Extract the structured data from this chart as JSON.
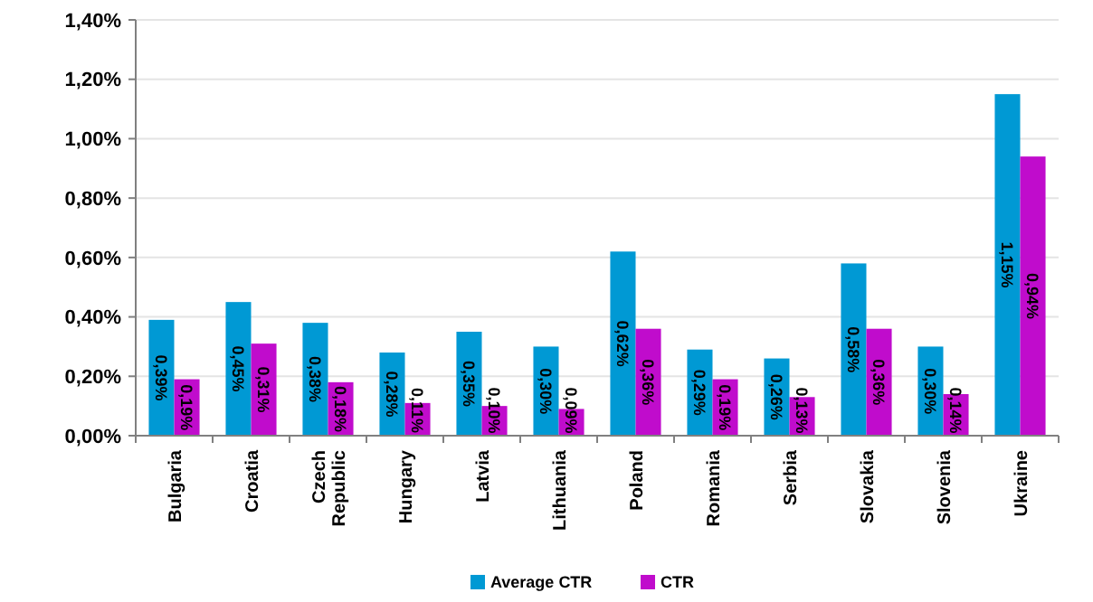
{
  "chart_data": {
    "type": "bar",
    "categories": [
      "Bulgaria",
      "Croatia",
      "Czech Republic",
      "Hungary",
      "Latvia",
      "Lithuania",
      "Poland",
      "Romania",
      "Serbia",
      "Slovakia",
      "Slovenia",
      "Ukraine"
    ],
    "series": [
      {
        "name": "Average CTR",
        "color": "#0099d4",
        "values": [
          0.39,
          0.45,
          0.38,
          0.28,
          0.35,
          0.3,
          0.62,
          0.29,
          0.26,
          0.58,
          0.3,
          1.15
        ],
        "value_labels": [
          "0,39%",
          "0,45%",
          "0,38%",
          "0,28%",
          "0,35%",
          "0,30%",
          "0,62%",
          "0,29%",
          "0,26%",
          "0,58%",
          "0,30%",
          "1,15%"
        ]
      },
      {
        "name": "CTR",
        "color": "#c00ccc",
        "values": [
          0.19,
          0.31,
          0.18,
          0.11,
          0.1,
          0.09,
          0.36,
          0.19,
          0.13,
          0.36,
          0.14,
          0.94
        ],
        "value_labels": [
          "0,19%",
          "0,31%",
          "0,18%",
          "0,11%",
          "0,10%",
          "0,09%",
          "0,36%",
          "0,19%",
          "0,13%",
          "0,36%",
          "0,14%",
          "0,94%"
        ]
      }
    ],
    "ylim": [
      0,
      1.4
    ],
    "yticks": [
      {
        "value": 0,
        "label": "0,00%"
      },
      {
        "value": 0.2,
        "label": "0,20%"
      },
      {
        "value": 0.4,
        "label": "0,40%"
      },
      {
        "value": 0.6,
        "label": "0,60%"
      },
      {
        "value": 0.8,
        "label": "0,80%"
      },
      {
        "value": 1.0,
        "label": "1,00%"
      },
      {
        "value": 1.2,
        "label": "1,20%"
      },
      {
        "value": 1.4,
        "label": "1,40%"
      }
    ],
    "grid": "y",
    "legend": "bottom"
  }
}
